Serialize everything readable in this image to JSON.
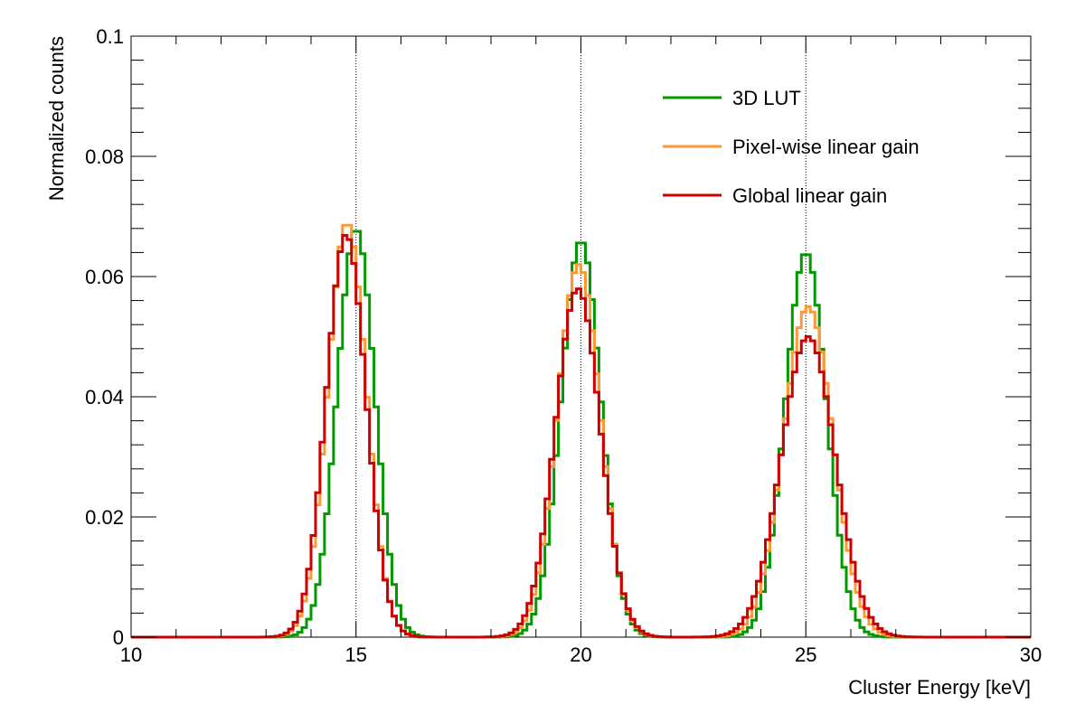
{
  "chart_data": {
    "type": "line",
    "style": "step-histogram",
    "title": "",
    "xlabel": "Cluster Energy [keV]",
    "ylabel": "Normalized counts",
    "xlim": [
      10,
      30
    ],
    "ylim": [
      0,
      0.1
    ],
    "x_ticks": [
      10,
      15,
      20,
      25,
      30
    ],
    "x_tick_labels": [
      "10",
      "15",
      "20",
      "25",
      "30"
    ],
    "y_ticks": [
      0,
      0.02,
      0.04,
      0.06,
      0.08,
      0.1
    ],
    "y_tick_labels": [
      "0",
      "0.02",
      "0.04",
      "0.06",
      "0.08",
      "0.1"
    ],
    "reference_lines": [
      15,
      20,
      25
    ],
    "grid": false,
    "legend_position": "top-right",
    "series": [
      {
        "name": "3D LUT",
        "color": "#009900",
        "peaks": [
          {
            "mean": 15.0,
            "sigma": 0.42,
            "height": 0.068
          },
          {
            "mean": 20.0,
            "sigma": 0.44,
            "height": 0.066
          },
          {
            "mean": 25.0,
            "sigma": 0.46,
            "height": 0.064
          }
        ]
      },
      {
        "name": "Pixel-wise linear gain",
        "color": "#ff9933",
        "peaks": [
          {
            "mean": 14.8,
            "sigma": 0.43,
            "height": 0.069
          },
          {
            "mean": 19.95,
            "sigma": 0.48,
            "height": 0.062
          },
          {
            "mean": 25.05,
            "sigma": 0.55,
            "height": 0.055
          }
        ]
      },
      {
        "name": "Global linear gain",
        "color": "#cc0000",
        "peaks": [
          {
            "mean": 14.78,
            "sigma": 0.44,
            "height": 0.067
          },
          {
            "mean": 19.93,
            "sigma": 0.5,
            "height": 0.058
          },
          {
            "mean": 25.05,
            "sigma": 0.6,
            "height": 0.05
          }
        ]
      }
    ]
  }
}
